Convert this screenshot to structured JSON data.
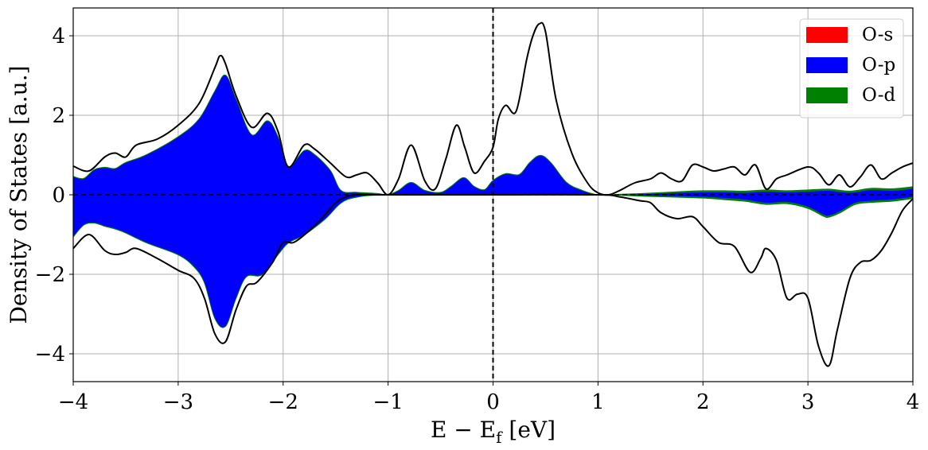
{
  "chart_data": {
    "type": "area",
    "xlabel_main": "E − E",
    "xlabel_sub": "f",
    "xlabel_unit": " [eV]",
    "ylabel": "Density of States [a.u.]",
    "xlim": [
      -4,
      4
    ],
    "ylim": [
      -4.7,
      4.7
    ],
    "xticks": [
      -4,
      -3,
      -2,
      -1,
      0,
      1,
      2,
      3,
      4
    ],
    "yticks": [
      -4,
      -2,
      0,
      2,
      4
    ],
    "xtick_labels": [
      "−4",
      "−3",
      "−2",
      "−1",
      "0",
      "1",
      "2",
      "3",
      "4"
    ],
    "ytick_labels": [
      "−4",
      "−2",
      "0",
      "2",
      "4"
    ],
    "grid": true,
    "legend_position": "top-right",
    "fermi_level": 0,
    "legend": [
      {
        "name": "O-s",
        "color": "#ff0000"
      },
      {
        "name": "O-p",
        "color": "#0000ff"
      },
      {
        "name": "O-d",
        "color": "#008000"
      }
    ],
    "total_dos": {
      "color": "#000000",
      "up": {
        "x": [
          -4.0,
          -3.85,
          -3.7,
          -3.6,
          -3.5,
          -3.4,
          -3.2,
          -3.0,
          -2.8,
          -2.65,
          -2.6,
          -2.55,
          -2.45,
          -2.3,
          -2.15,
          -2.05,
          -1.95,
          -1.8,
          -1.7,
          -1.55,
          -1.4,
          -1.3,
          -1.2,
          -1.1,
          -1.0,
          -0.9,
          -0.78,
          -0.65,
          -0.55,
          -0.45,
          -0.35,
          -0.27,
          -0.18,
          -0.08,
          0.0,
          0.05,
          0.12,
          0.22,
          0.32,
          0.38,
          0.44,
          0.5,
          0.6,
          0.75,
          0.9,
          1.0,
          1.1,
          1.2,
          1.35,
          1.5,
          1.6,
          1.7,
          1.8,
          1.9,
          2.0,
          2.1,
          2.2,
          2.3,
          2.4,
          2.5,
          2.6,
          2.7,
          2.8,
          3.0,
          3.1,
          3.2,
          3.3,
          3.4,
          3.5,
          3.6,
          3.7,
          3.8,
          3.9,
          4.0
        ],
        "y": [
          0.72,
          0.6,
          0.95,
          1.05,
          0.95,
          1.25,
          1.4,
          1.75,
          2.3,
          3.2,
          3.5,
          3.3,
          2.5,
          1.7,
          2.05,
          1.6,
          0.7,
          1.25,
          1.15,
          0.8,
          0.45,
          0.5,
          0.55,
          0.3,
          0.0,
          0.4,
          1.25,
          0.35,
          0.15,
          0.9,
          1.75,
          1.2,
          0.55,
          0.85,
          1.2,
          1.9,
          2.25,
          2.1,
          3.4,
          4.0,
          4.3,
          4.1,
          2.4,
          1.05,
          0.3,
          0.05,
          0.0,
          0.1,
          0.3,
          0.4,
          0.55,
          0.4,
          0.35,
          0.75,
          0.7,
          0.6,
          0.65,
          0.7,
          0.5,
          0.75,
          0.15,
          0.4,
          0.5,
          0.7,
          0.55,
          0.25,
          0.5,
          0.2,
          0.45,
          0.75,
          0.4,
          0.55,
          0.7,
          0.8
        ]
      },
      "down": {
        "x": [
          -4.0,
          -3.85,
          -3.7,
          -3.6,
          -3.5,
          -3.4,
          -3.2,
          -3.0,
          -2.85,
          -2.75,
          -2.65,
          -2.55,
          -2.45,
          -2.35,
          -2.25,
          -2.1,
          -2.0,
          -1.9,
          -1.75,
          -1.6,
          -1.5,
          -1.4,
          -1.3,
          -1.1,
          -1.0,
          0.0,
          1.0,
          1.2,
          1.4,
          1.5,
          1.6,
          1.75,
          1.9,
          2.0,
          2.15,
          2.3,
          2.45,
          2.55,
          2.6,
          2.7,
          2.8,
          2.9,
          3.0,
          3.1,
          3.2,
          3.28,
          3.4,
          3.5,
          3.6,
          3.7,
          3.8,
          3.9,
          4.0
        ],
        "y": [
          -1.35,
          -1.0,
          -1.4,
          -1.5,
          -1.45,
          -1.35,
          -1.6,
          -1.9,
          -2.1,
          -2.6,
          -3.5,
          -3.7,
          -2.9,
          -2.3,
          -2.2,
          -1.7,
          -1.2,
          -1.2,
          -0.9,
          -0.5,
          -0.2,
          -0.05,
          0.0,
          0.0,
          0.0,
          0.0,
          0.0,
          -0.05,
          -0.15,
          -0.2,
          -0.45,
          -0.6,
          -0.55,
          -0.8,
          -1.2,
          -1.3,
          -1.95,
          -1.6,
          -1.35,
          -1.65,
          -2.6,
          -2.5,
          -2.6,
          -3.8,
          -4.3,
          -3.4,
          -2.1,
          -1.7,
          -1.65,
          -1.4,
          -0.95,
          -0.4,
          -0.1
        ]
      }
    },
    "pdos_stacked": {
      "up": {
        "x": [
          -4.0,
          -3.9,
          -3.8,
          -3.7,
          -3.6,
          -3.5,
          -3.3,
          -3.0,
          -2.8,
          -2.65,
          -2.55,
          -2.45,
          -2.3,
          -2.15,
          -2.05,
          -1.95,
          -1.8,
          -1.7,
          -1.55,
          -1.45,
          -1.3,
          -1.1,
          -1.0,
          -0.9,
          -0.78,
          -0.65,
          -0.5,
          -0.4,
          -0.28,
          -0.18,
          -0.08,
          0.0,
          0.12,
          0.25,
          0.35,
          0.45,
          0.55,
          0.7,
          0.85,
          1.0,
          1.2,
          1.5,
          1.8,
          2.0,
          2.2,
          2.4,
          2.6,
          2.8,
          3.0,
          3.2,
          3.4,
          3.6,
          3.8,
          4.0
        ],
        "y_s": [
          0.0,
          0.0,
          0.0,
          0.0,
          0.0,
          0.0,
          0.0,
          0.0,
          0.0,
          0.0,
          0.0,
          0.0,
          0.0,
          0.0,
          0.0,
          0.0,
          0.0,
          0.0,
          0.0,
          0.0,
          0.0,
          0.0,
          0.0,
          0.0,
          0.0,
          0.0,
          0.0,
          0.0,
          0.0,
          0.0,
          0.0,
          0.0,
          0.0,
          0.0,
          0.0,
          0.0,
          0.0,
          0.0,
          0.0,
          0.0,
          0.0,
          0.0,
          0.0,
          0.0,
          0.0,
          0.0,
          0.0,
          0.0,
          0.0,
          0.0,
          0.0,
          0.0,
          0.0,
          0.0
        ],
        "y_p": [
          0.45,
          0.4,
          0.62,
          0.68,
          0.65,
          0.8,
          1.0,
          1.45,
          1.9,
          2.6,
          3.0,
          2.4,
          1.5,
          1.85,
          1.45,
          0.7,
          1.1,
          1.0,
          0.6,
          0.1,
          0.05,
          0.02,
          0.0,
          0.1,
          0.3,
          0.1,
          0.05,
          0.2,
          0.42,
          0.2,
          0.12,
          0.35,
          0.52,
          0.5,
          0.8,
          0.98,
          0.8,
          0.3,
          0.1,
          0.0,
          0.0,
          0.02,
          0.05,
          0.06,
          0.06,
          0.05,
          0.08,
          0.06,
          0.08,
          0.1,
          0.05,
          0.12,
          0.1,
          0.15
        ],
        "y_d": [
          0.01,
          0.01,
          0.01,
          0.01,
          0.01,
          0.01,
          0.01,
          0.01,
          0.01,
          0.01,
          0.01,
          0.01,
          0.01,
          0.01,
          0.01,
          0.01,
          0.01,
          0.01,
          0.01,
          0.01,
          0.01,
          0.01,
          0.0,
          0.01,
          0.01,
          0.01,
          0.01,
          0.01,
          0.01,
          0.01,
          0.01,
          0.01,
          0.01,
          0.01,
          0.01,
          0.01,
          0.01,
          0.01,
          0.01,
          0.0,
          0.01,
          0.02,
          0.03,
          0.04,
          0.04,
          0.04,
          0.04,
          0.04,
          0.04,
          0.04,
          0.04,
          0.04,
          0.05,
          0.05
        ]
      },
      "down": {
        "x": [
          -4.0,
          -3.9,
          -3.8,
          -3.7,
          -3.6,
          -3.5,
          -3.3,
          -3.0,
          -2.85,
          -2.75,
          -2.65,
          -2.55,
          -2.45,
          -2.35,
          -2.2,
          -2.05,
          -1.95,
          -1.8,
          -1.6,
          -1.45,
          -1.3,
          -1.0,
          0.0,
          1.0,
          1.5,
          2.0,
          2.2,
          2.4,
          2.6,
          2.8,
          3.0,
          3.15,
          3.2,
          3.3,
          3.45,
          3.6,
          3.8,
          4.0
        ],
        "y_s": [
          0.0,
          0.0,
          0.0,
          0.0,
          0.0,
          0.0,
          0.0,
          0.0,
          0.0,
          0.0,
          0.0,
          0.0,
          0.0,
          0.0,
          0.0,
          0.0,
          0.0,
          0.0,
          0.0,
          0.0,
          0.0,
          0.0,
          0.0,
          0.0,
          0.0,
          0.0,
          0.0,
          0.0,
          0.0,
          0.0,
          0.0,
          0.0,
          0.0,
          0.0,
          0.0,
          0.0,
          0.0,
          0.0
        ],
        "y_p": [
          -1.05,
          -0.75,
          -0.7,
          -0.78,
          -0.85,
          -0.95,
          -1.2,
          -1.5,
          -1.8,
          -2.2,
          -3.1,
          -3.3,
          -2.6,
          -2.05,
          -2.0,
          -1.5,
          -1.2,
          -1.0,
          -0.6,
          -0.2,
          -0.05,
          0.0,
          0.0,
          0.0,
          -0.02,
          -0.05,
          -0.08,
          -0.12,
          -0.2,
          -0.18,
          -0.3,
          -0.5,
          -0.52,
          -0.42,
          -0.2,
          -0.15,
          -0.12,
          -0.05
        ],
        "y_d": [
          -0.01,
          -0.01,
          -0.01,
          -0.01,
          -0.01,
          -0.01,
          -0.01,
          -0.01,
          -0.01,
          -0.01,
          -0.01,
          -0.01,
          -0.01,
          -0.01,
          -0.01,
          -0.01,
          -0.01,
          -0.01,
          -0.01,
          -0.01,
          -0.01,
          0.0,
          0.0,
          0.0,
          -0.02,
          -0.03,
          -0.04,
          -0.04,
          -0.04,
          -0.04,
          -0.04,
          -0.04,
          -0.04,
          -0.04,
          -0.04,
          -0.04,
          -0.04,
          -0.04
        ]
      }
    }
  }
}
